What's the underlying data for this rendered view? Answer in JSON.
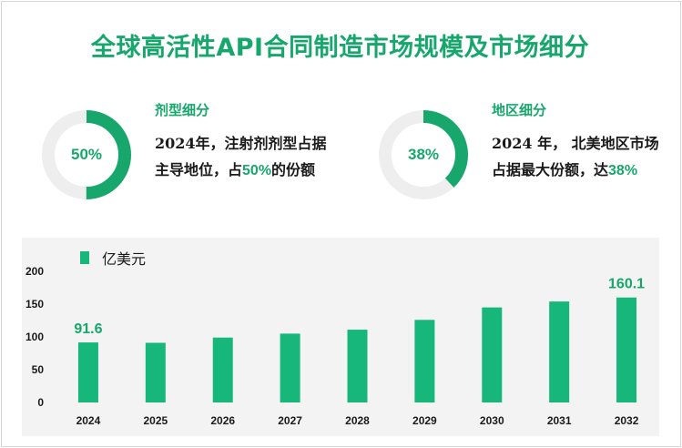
{
  "title": "全球高活性API合同制造市场规模及市场细分",
  "segment_left": {
    "heading": "剂型细分",
    "percent_label": "50%",
    "percent": 50,
    "text_before": "2024年，注射剂剂型占据主导地位，占",
    "text_highlight": "50%",
    "text_after": "的份额"
  },
  "segment_right": {
    "heading": "地区细分",
    "percent_label": "38%",
    "percent": 38,
    "text_before": "2024 年， 北美地区市场占据最大份额，达",
    "text_highlight": "38%",
    "text_after": ""
  },
  "colors": {
    "accent": "#17a76d",
    "bar": "#17b77c",
    "ring_bg": "#eeeeee"
  },
  "chart_data": {
    "type": "bar",
    "categories": [
      "2024",
      "2025",
      "2026",
      "2027",
      "2028",
      "2029",
      "2030",
      "2031",
      "2032"
    ],
    "series": [
      {
        "name": "亿美元",
        "values": [
          91.6,
          91,
          99,
          105,
          111,
          126,
          145,
          154,
          160.1
        ]
      }
    ],
    "data_labels": {
      "2024": "91.6",
      "2032": "160.1"
    },
    "yticks": [
      "0",
      "50",
      "100",
      "150",
      "200"
    ],
    "ylim": [
      0,
      200
    ],
    "grid": false,
    "legend": "top-left"
  }
}
